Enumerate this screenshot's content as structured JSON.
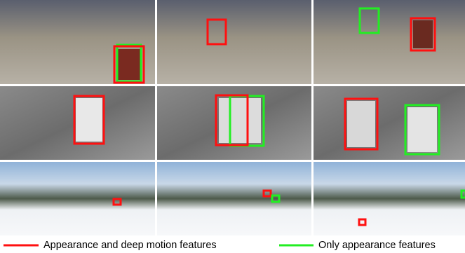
{
  "legend": [
    {
      "label": "Appearance and deep motion features",
      "color": "#ff1010"
    },
    {
      "label": "Only appearance features",
      "color": "#22ee22"
    }
  ]
}
